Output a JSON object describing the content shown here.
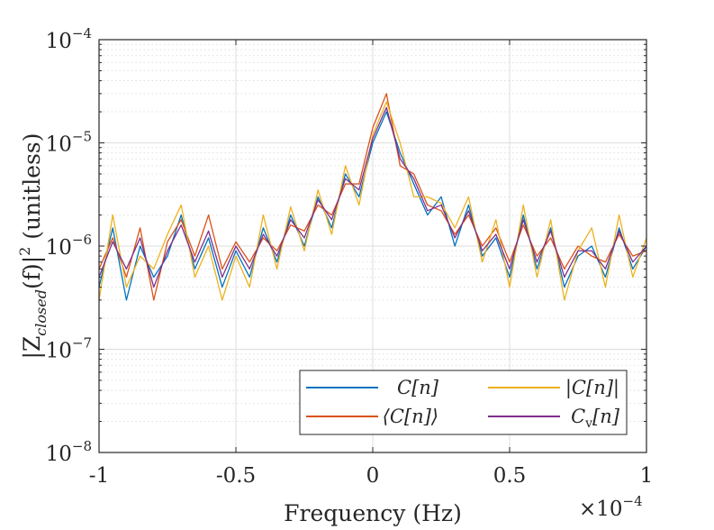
{
  "chart_data": {
    "type": "line",
    "title": "",
    "xlabel": "Frequency (Hz)",
    "ylabel": "|Z_closed(f)|^2 (unitless)",
    "ylabel_parts": {
      "pre": "|Z",
      "sub": "closed",
      "mid": "(f)|",
      "sup": "2",
      "post": " (unitless)"
    },
    "x_exponent": {
      "base": "×10",
      "exp": "−4"
    },
    "xlim": [
      -1,
      1
    ],
    "ylim": [
      1e-08,
      0.0001
    ],
    "yscale": "log",
    "x_ticks": [
      -1,
      -0.5,
      0,
      0.5,
      1
    ],
    "x_tick_labels": [
      "-1",
      "-0.5",
      "0",
      "0.5",
      "1"
    ],
    "y_ticks": [
      1e-08,
      1e-07,
      1e-06,
      1e-05,
      0.0001
    ],
    "y_tick_labels": [
      {
        "base": "10",
        "exp": "−8"
      },
      {
        "base": "10",
        "exp": "−7"
      },
      {
        "base": "10",
        "exp": "−6"
      },
      {
        "base": "10",
        "exp": "−5"
      },
      {
        "base": "10",
        "exp": "−4"
      }
    ],
    "grid": true,
    "minor_grid": true,
    "legend_position": "bottom-right",
    "legend_columns": 2,
    "x": [
      -1.0,
      -0.95,
      -0.9,
      -0.85,
      -0.8,
      -0.75,
      -0.7,
      -0.65,
      -0.6,
      -0.55,
      -0.5,
      -0.45,
      -0.4,
      -0.35,
      -0.3,
      -0.25,
      -0.2,
      -0.15,
      -0.1,
      -0.05,
      0.0,
      0.05,
      0.1,
      0.15,
      0.2,
      0.25,
      0.3,
      0.35,
      0.4,
      0.45,
      0.5,
      0.55,
      0.6,
      0.65,
      0.7,
      0.75,
      0.8,
      0.85,
      0.9,
      0.95,
      1.0
    ],
    "series": [
      {
        "name": "C[n]",
        "legend": {
          "main": "C[n]"
        },
        "color": "#0072BD",
        "values": [
          4e-07,
          1.5e-06,
          3e-07,
          1e-06,
          5e-07,
          8e-07,
          2e-06,
          6e-07,
          1.2e-06,
          4e-07,
          9e-07,
          5e-07,
          1.5e-06,
          7e-07,
          2e-06,
          1e-06,
          3e-06,
          1.5e-06,
          5e-06,
          3e-06,
          1e-05,
          2e-05,
          8e-06,
          4e-06,
          2e-06,
          3e-06,
          1e-06,
          2.5e-06,
          8e-07,
          1.2e-06,
          5e-07,
          2e-06,
          6e-07,
          1.5e-06,
          4e-07,
          8e-07,
          1e-06,
          5e-07,
          1.5e-06,
          6e-07,
          1e-06
        ]
      },
      {
        "name": "⟨C[n]⟩",
        "legend": {
          "main": "⟨C[n]⟩"
        },
        "color": "#D95319",
        "values": [
          6e-07,
          1.2e-06,
          5e-07,
          1.5e-06,
          3e-07,
          1.1e-06,
          1.8e-06,
          8e-07,
          2e-06,
          6e-07,
          1.1e-06,
          7e-07,
          1.2e-06,
          9e-07,
          1.6e-06,
          1.4e-06,
          2.5e-06,
          2e-06,
          4e-06,
          4e-06,
          1.4e-05,
          3e-05,
          6e-06,
          5e-06,
          2.5e-06,
          2.2e-06,
          1.3e-06,
          2e-06,
          1e-06,
          1.5e-06,
          7e-07,
          1.6e-06,
          8e-07,
          1.2e-06,
          6e-07,
          1e-06,
          8e-07,
          7e-07,
          1.3e-06,
          8e-07,
          9e-07
        ]
      },
      {
        "name": "|C[n]|",
        "legend": {
          "main": "|C[n]|"
        },
        "color": "#EDB120",
        "values": [
          3e-07,
          2e-06,
          4e-07,
          8e-07,
          6e-07,
          1.3e-06,
          2.5e-06,
          5e-07,
          1e-06,
          3e-07,
          8e-07,
          4e-07,
          2e-06,
          6e-07,
          2.4e-06,
          9e-07,
          3.5e-06,
          1.3e-06,
          6e-06,
          2.5e-06,
          1.2e-05,
          2.5e-05,
          1e-05,
          3e-06,
          3e-06,
          2.6e-06,
          1.5e-06,
          3e-06,
          7e-07,
          1.8e-06,
          4e-07,
          2.5e-06,
          5e-07,
          1.8e-06,
          3e-07,
          9e-07,
          1.5e-06,
          4e-07,
          2e-06,
          5e-07,
          1.2e-06
        ]
      },
      {
        "name": "C_v[n]",
        "legend": {
          "main": "C",
          "sub": "v",
          "tail": "[n]"
        },
        "color": "#7E2F8E",
        "values": [
          5e-07,
          1.1e-06,
          6e-07,
          1.2e-06,
          4e-07,
          9e-07,
          1.6e-06,
          7e-07,
          1.4e-06,
          5e-07,
          1e-06,
          6e-07,
          1.3e-06,
          8e-07,
          1.8e-06,
          1.2e-06,
          2.8e-06,
          1.8e-06,
          4.5e-06,
          3.5e-06,
          1.1e-05,
          2.2e-05,
          7e-06,
          4.5e-06,
          2.2e-06,
          2.5e-06,
          1.2e-06,
          2.2e-06,
          9e-07,
          1.3e-06,
          6e-07,
          1.8e-06,
          7e-07,
          1.4e-06,
          5e-07,
          9e-07,
          9e-07,
          6e-07,
          1.4e-06,
          7e-07,
          1e-06
        ]
      }
    ]
  }
}
